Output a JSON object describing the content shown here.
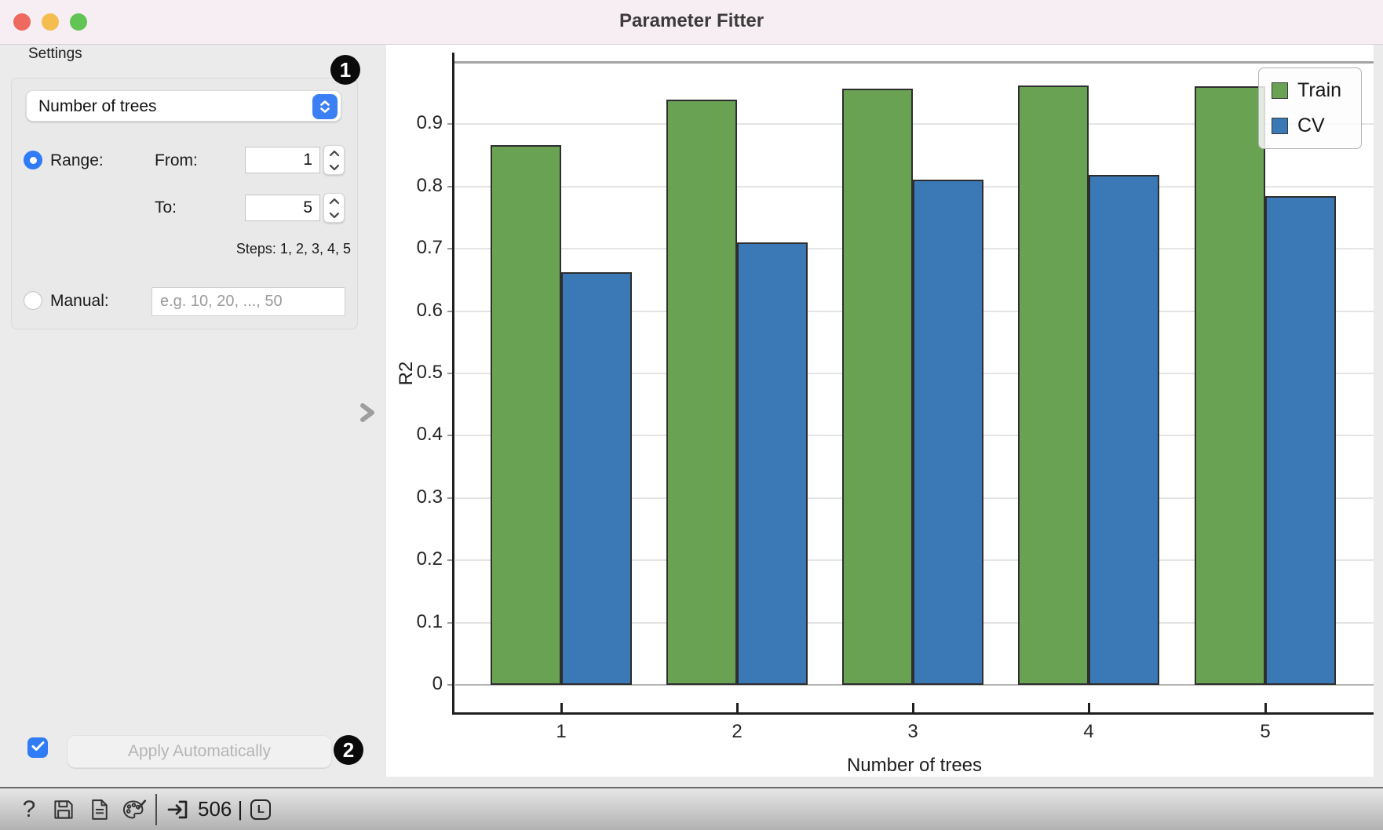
{
  "window": {
    "title": "Parameter Fitter"
  },
  "sidebar": {
    "header": "Settings",
    "parameter_select": {
      "value": "Number of trees",
      "icon": "popup-stepper-icon"
    },
    "range": {
      "label": "Range:",
      "from_label": "From:",
      "from_value": "1",
      "to_label": "To:",
      "to_value": "5",
      "steps_text": "Steps: 1, 2, 3, 4, 5"
    },
    "manual": {
      "label": "Manual:",
      "placeholder": "e.g. 10, 20, ..., 50"
    },
    "apply": {
      "label": "Apply Automatically",
      "checkbox_checked": true
    },
    "badges": {
      "step1": "1",
      "step2": "2"
    },
    "collapse_icon": "chevron-right-icon"
  },
  "statusbar": {
    "left_icons": [
      "help-icon",
      "save-icon",
      "document-icon",
      "palette-icon"
    ],
    "right_icons": [
      "import-icon",
      "l-badge-icon"
    ],
    "count": "506",
    "separator": "|",
    "l_badge": "L"
  },
  "chart_data": {
    "type": "bar",
    "title": "",
    "categories": [
      "1",
      "2",
      "3",
      "4",
      "5"
    ],
    "series": [
      {
        "name": "Train",
        "color": "#6aa253",
        "values": [
          0.866,
          0.939,
          0.957,
          0.962,
          0.961
        ]
      },
      {
        "name": "CV",
        "color": "#3a79b5",
        "values": [
          0.662,
          0.71,
          0.811,
          0.819,
          0.785
        ]
      }
    ],
    "xlabel": "Number of trees",
    "ylabel": "R2",
    "ylim": [
      0,
      1.0
    ],
    "yticks": [
      0,
      0.1,
      0.2,
      0.3,
      0.4,
      0.5,
      0.6,
      0.7,
      0.8,
      0.9
    ],
    "grid": true,
    "legend_position": "upper right"
  }
}
